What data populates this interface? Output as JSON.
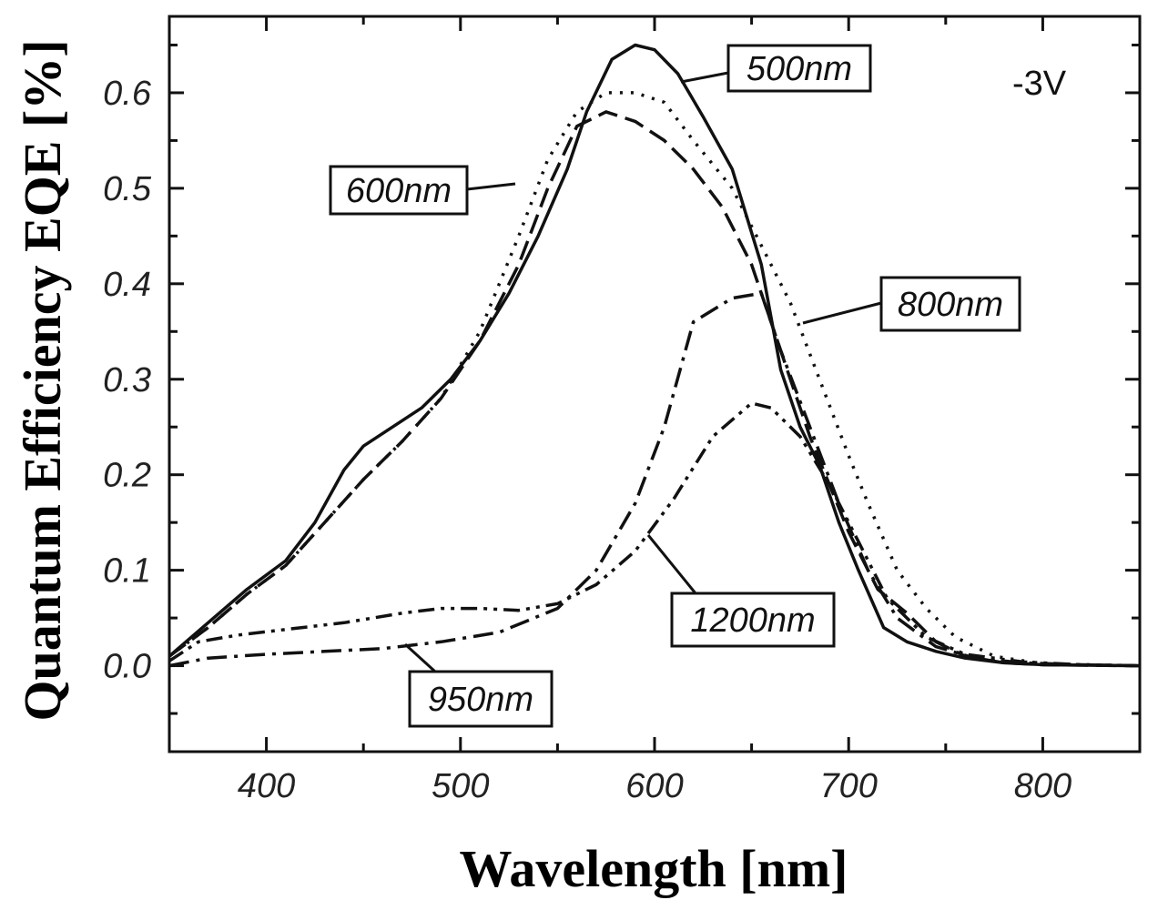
{
  "chart_data": {
    "type": "line",
    "title": "",
    "xlabel": "Wavelength [nm]",
    "ylabel": "Quantum Efficiency EQE [%]",
    "xlim": [
      350,
      850
    ],
    "ylim": [
      -0.09,
      0.68
    ],
    "xticks": [
      400,
      500,
      600,
      700,
      800
    ],
    "yticks": [
      0.0,
      0.1,
      0.2,
      0.3,
      0.4,
      0.5,
      0.6
    ],
    "ytick_labels": [
      "0.0",
      "0.1",
      "0.2",
      "0.3",
      "0.4",
      "0.5",
      "0.6"
    ],
    "grid": false,
    "annotations": [
      {
        "text": "-3V",
        "style": "plain"
      }
    ],
    "series": [
      {
        "name": "500nm",
        "dash": "solid",
        "x": [
          350,
          370,
          390,
          410,
          425,
          440,
          450,
          465,
          480,
          495,
          510,
          525,
          540,
          555,
          565,
          578,
          590,
          600,
          612,
          625,
          640,
          655,
          665,
          675,
          685,
          695,
          705,
          718,
          730,
          745,
          760,
          780,
          800,
          850
        ],
        "y": [
          0.01,
          0.045,
          0.08,
          0.11,
          0.15,
          0.205,
          0.23,
          0.25,
          0.27,
          0.3,
          0.34,
          0.39,
          0.45,
          0.52,
          0.58,
          0.635,
          0.65,
          0.645,
          0.62,
          0.575,
          0.52,
          0.42,
          0.31,
          0.25,
          0.21,
          0.15,
          0.1,
          0.04,
          0.025,
          0.015,
          0.008,
          0.003,
          0.001,
          0.0
        ]
      },
      {
        "name": "600nm",
        "dash": "dashed",
        "x": [
          350,
          370,
          390,
          410,
          430,
          450,
          470,
          490,
          510,
          530,
          545,
          560,
          575,
          590,
          605,
          620,
          635,
          650,
          660,
          670,
          680,
          690,
          700,
          715,
          730,
          745,
          760,
          780,
          800,
          850
        ],
        "y": [
          0.01,
          0.04,
          0.075,
          0.105,
          0.15,
          0.195,
          0.235,
          0.28,
          0.34,
          0.42,
          0.5,
          0.565,
          0.58,
          0.57,
          0.55,
          0.52,
          0.48,
          0.42,
          0.36,
          0.3,
          0.24,
          0.19,
          0.14,
          0.08,
          0.055,
          0.025,
          0.01,
          0.003,
          0.001,
          0.0
        ]
      },
      {
        "name": "800nm",
        "dash": "dotted",
        "x": [
          350,
          370,
          390,
          410,
          430,
          450,
          470,
          490,
          510,
          530,
          545,
          560,
          575,
          590,
          605,
          620,
          640,
          655,
          670,
          685,
          700,
          710,
          725,
          740,
          755,
          775,
          800,
          850
        ],
        "y": [
          0.01,
          0.04,
          0.075,
          0.105,
          0.15,
          0.195,
          0.235,
          0.28,
          0.35,
          0.45,
          0.53,
          0.58,
          0.6,
          0.6,
          0.59,
          0.55,
          0.5,
          0.44,
          0.38,
          0.3,
          0.22,
          0.17,
          0.1,
          0.06,
          0.03,
          0.01,
          0.002,
          0.0
        ]
      },
      {
        "name": "950nm",
        "dash": "dash-dot",
        "x": [
          350,
          370,
          400,
          430,
          460,
          490,
          520,
          550,
          570,
          590,
          605,
          620,
          640,
          655,
          665,
          680,
          695,
          710,
          725,
          745,
          765,
          790,
          820,
          850
        ],
        "y": [
          0.0,
          0.008,
          0.012,
          0.015,
          0.018,
          0.025,
          0.035,
          0.06,
          0.1,
          0.17,
          0.25,
          0.36,
          0.385,
          0.39,
          0.33,
          0.25,
          0.17,
          0.1,
          0.05,
          0.02,
          0.008,
          0.003,
          0.001,
          0.0
        ]
      },
      {
        "name": "1200nm",
        "dash": "dash-dot-dot",
        "x": [
          350,
          365,
          385,
          410,
          440,
          470,
          490,
          510,
          530,
          550,
          570,
          590,
          610,
          630,
          650,
          660,
          675,
          690,
          705,
          720,
          740,
          760,
          790,
          820,
          850
        ],
        "y": [
          0.005,
          0.025,
          0.032,
          0.038,
          0.045,
          0.055,
          0.06,
          0.06,
          0.058,
          0.065,
          0.085,
          0.12,
          0.175,
          0.24,
          0.275,
          0.27,
          0.24,
          0.19,
          0.13,
          0.07,
          0.03,
          0.012,
          0.004,
          0.001,
          0.0
        ]
      }
    ],
    "callouts": [
      {
        "series": "500nm",
        "label": "500nm"
      },
      {
        "series": "600nm",
        "label": "600nm"
      },
      {
        "series": "800nm",
        "label": "800nm"
      },
      {
        "series": "1200nm",
        "label": "1200nm"
      },
      {
        "series": "950nm",
        "label": "950nm"
      }
    ]
  }
}
